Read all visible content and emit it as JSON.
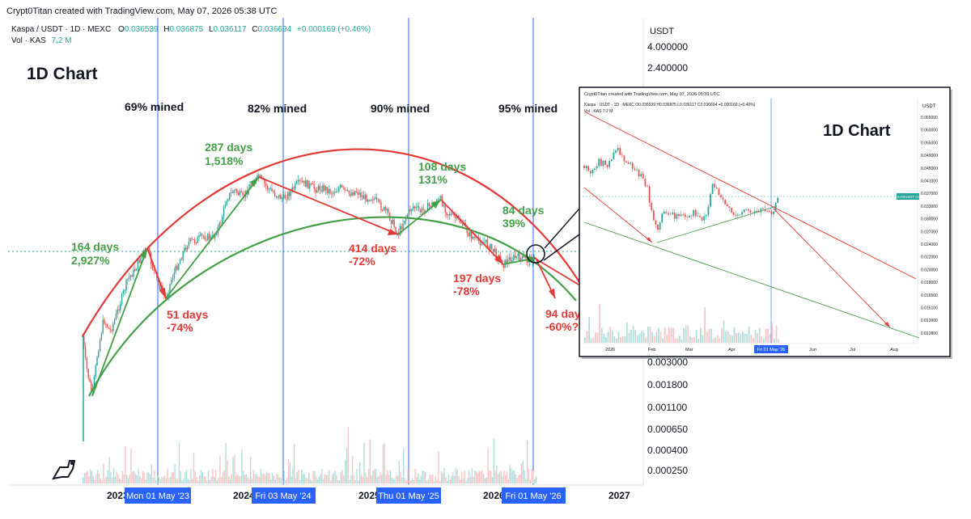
{
  "watermark": "Crypt0Titan created with TradingView.com, May 07, 2026 05:38 UTC",
  "header": {
    "symbol": "Kaspa / USDT · 1D · MEXC",
    "o_label": "O",
    "o_value": "0.036539",
    "h_label": "H",
    "h_value": "0.036875",
    "l_label": "L",
    "l_value": "0.036117",
    "c_label": "C",
    "c_value": "0.036694",
    "change": "+0.000169 (+0.46%)",
    "vol_label": "Vol · KAS",
    "vol_value": "7.2 M"
  },
  "chart_title": "1D Chart",
  "price_axis": {
    "currency": "USDT",
    "ticks": [
      "4.000000",
      "2.400000",
      "0.003000",
      "0.001800",
      "0.001100",
      "0.000650",
      "0.000400",
      "0.000250"
    ]
  },
  "time_axis": {
    "years": [
      "2023",
      "2024",
      "2025",
      "2026",
      "2027"
    ],
    "markers": [
      "Mon 01 May '23",
      "Fri 03 May '24",
      "Thu 01 May '25",
      "Fri 01 May '26"
    ]
  },
  "mined_labels": [
    "69% mined",
    "82% mined",
    "90% mined",
    "95% mined"
  ],
  "annotations": {
    "green": [
      {
        "days": "164 days",
        "pct": "2,927%"
      },
      {
        "days": "287 days",
        "pct": "1,518%"
      },
      {
        "days": "108 days",
        "pct": "131%"
      },
      {
        "days": "84 days",
        "pct": "39%"
      }
    ],
    "red": [
      {
        "days": "51 days",
        "pct": "-74%"
      },
      {
        "days": "414 days",
        "pct": "-72%"
      },
      {
        "days": "197 days",
        "pct": "-78%"
      },
      {
        "days": "94 days",
        "pct": "-60%?"
      }
    ]
  },
  "inset": {
    "watermark": "Crypt0Titan created with TradingView.com, May 07, 2026 05:39 UTC",
    "symbol_line": "Kaspa · USDT · 1D · MEXC  O0.036539 H0.036875 L0.036117 C0.036694 +0.000169 (+0.46%)",
    "vol_line": "Vol · KAS  7.2 M",
    "title": "1D Chart",
    "currency": "USDT",
    "price_ticks": [
      "0.065000",
      "0.060000",
      "0.055000",
      "0.049000",
      "0.045000",
      "0.041000",
      "0.037000",
      "0.033000",
      "0.030000",
      "0.027000",
      "0.024000",
      "0.022000",
      "0.020000",
      "0.018000",
      "0.016500",
      "0.015100",
      "0.013900",
      "0.012800"
    ],
    "last_price_label": "KASUSDT  0.036694",
    "months": [
      "2026",
      "Feb",
      "Mar",
      "Apr",
      "Jun",
      "Jul",
      "Aug"
    ],
    "marker": "Fri 01 May '26"
  },
  "colors": {
    "green": "#43a047",
    "red": "#e53935",
    "marker_line": "#2962ff",
    "marker_bg": "#2962ff",
    "candle_up": "#26a69a",
    "candle_down": "#ef5350"
  },
  "chart_data": {
    "type": "candlestick",
    "x_markers": [
      "Mon 01 May '23",
      "Fri 03 May '24",
      "Thu 01 May '25",
      "Fri 01 May '26"
    ],
    "price_scale": "log",
    "last_price": 0.036694,
    "ohlc_last": {
      "open": 0.036539,
      "high": 0.036875,
      "low": 0.036117,
      "close": 0.036694
    },
    "cycle_annotations": [
      {
        "label": "164 days",
        "change": "2,927%",
        "direction": "up"
      },
      {
        "label": "51 days",
        "change": "-74%",
        "direction": "down"
      },
      {
        "label": "287 days",
        "change": "1,518%",
        "direction": "up"
      },
      {
        "label": "414 days",
        "change": "-72%",
        "direction": "down"
      },
      {
        "label": "108 days",
        "change": "131%",
        "direction": "up"
      },
      {
        "label": "197 days",
        "change": "-78%",
        "direction": "down"
      },
      {
        "label": "84 days",
        "change": "39%",
        "direction": "up"
      },
      {
        "label": "94 days",
        "change": "-60%?",
        "direction": "down"
      }
    ],
    "supply_mined": [
      "69% mined",
      "82% mined",
      "90% mined",
      "95% mined"
    ]
  }
}
